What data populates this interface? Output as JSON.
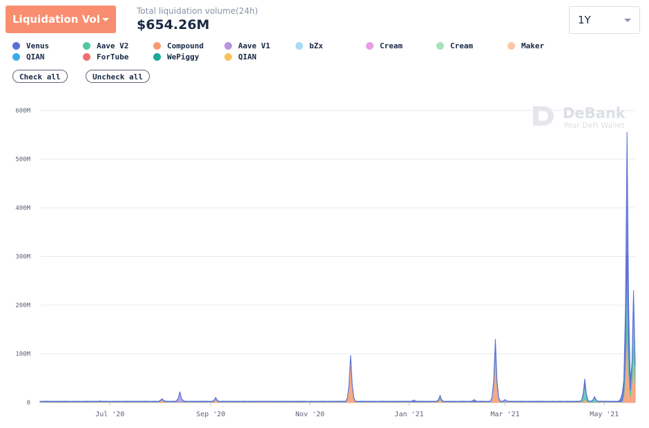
{
  "header": {
    "metric_label": "Liquidation Vol",
    "total_label": "Total liquidation volume(24h)",
    "total_value": "$654.26M",
    "range_value": "1Y"
  },
  "legend": [
    {
      "name": "Venus",
      "color": "#5b6fd8"
    },
    {
      "name": "Aave V2",
      "color": "#4ec9a2"
    },
    {
      "name": "Compound",
      "color": "#f59a72"
    },
    {
      "name": "Aave V1",
      "color": "#b794de"
    },
    {
      "name": "bZx",
      "color": "#a8dcf5"
    },
    {
      "name": "Cream",
      "color": "#e79ee3"
    },
    {
      "name": "Cream",
      "color": "#a7e3b8"
    },
    {
      "name": "Maker",
      "color": "#f9c7a6"
    },
    {
      "name": "QIAN",
      "color": "#3eabe6"
    },
    {
      "name": "ForTube",
      "color": "#f0706e"
    },
    {
      "name": "WePiggy",
      "color": "#1aa898"
    },
    {
      "name": "QIAN",
      "color": "#f8c45c"
    }
  ],
  "buttons": {
    "check_all": "Check all",
    "uncheck_all": "Uncheck all"
  },
  "watermark": {
    "title": "DeBank",
    "subtitle": "Your DeFi Wallet"
  },
  "chart_data": {
    "type": "area",
    "stacked": true,
    "x_axis": {
      "type": "date",
      "min": "2020-05-19",
      "max": "2021-05-20",
      "ticks": [
        {
          "date": "2020-07-01",
          "label": "Jul '20"
        },
        {
          "date": "2020-09-01",
          "label": "Sep '20"
        },
        {
          "date": "2020-11-01",
          "label": "Nov '20"
        },
        {
          "date": "2021-01-01",
          "label": "Jan '21"
        },
        {
          "date": "2021-03-01",
          "label": "Mar '21"
        },
        {
          "date": "2021-05-01",
          "label": "May '21"
        }
      ]
    },
    "y_axis": {
      "min": 0,
      "max": 600,
      "ticks": [
        {
          "value": 0,
          "label": "0"
        },
        {
          "value": 100,
          "label": "100M"
        },
        {
          "value": 200,
          "label": "200M"
        },
        {
          "value": 300,
          "label": "300M"
        },
        {
          "value": 400,
          "label": "400M"
        },
        {
          "value": 500,
          "label": "500M"
        },
        {
          "value": 600,
          "label": "600M"
        }
      ]
    },
    "grid": true,
    "series": [
      {
        "name": "Compound",
        "color": "#f59a72",
        "points": [
          {
            "date": "2020-06-25",
            "value": 1
          },
          {
            "date": "2020-08-02",
            "value": 6
          },
          {
            "date": "2020-09-04",
            "value": 7
          },
          {
            "date": "2020-11-26",
            "value": 95
          },
          {
            "date": "2021-01-20",
            "value": 8
          },
          {
            "date": "2021-02-23",
            "value": 100
          },
          {
            "date": "2021-04-19",
            "value": 8
          },
          {
            "date": "2021-05-15",
            "value": 165
          },
          {
            "date": "2021-05-19",
            "value": 110
          }
        ]
      },
      {
        "name": "Aave V2",
        "color": "#4ec9a2",
        "points": [
          {
            "date": "2021-01-20",
            "value": 5
          },
          {
            "date": "2021-02-23",
            "value": 20
          },
          {
            "date": "2021-04-19",
            "value": 30
          },
          {
            "date": "2021-04-25",
            "value": 10
          },
          {
            "date": "2021-05-14",
            "value": 25
          },
          {
            "date": "2021-05-15",
            "value": 140
          },
          {
            "date": "2021-05-19",
            "value": 100
          }
        ]
      },
      {
        "name": "Aave V1",
        "color": "#b794de",
        "points": [
          {
            "date": "2020-08-13",
            "value": 20
          },
          {
            "date": "2020-09-04",
            "value": 2
          },
          {
            "date": "2021-03-01",
            "value": 4
          }
        ]
      },
      {
        "name": "Venus",
        "color": "#5b6fd8",
        "points": [
          {
            "date": "2021-01-04",
            "value": 3
          },
          {
            "date": "2021-02-10",
            "value": 4
          },
          {
            "date": "2021-02-23",
            "value": 10
          },
          {
            "date": "2021-04-19",
            "value": 10
          },
          {
            "date": "2021-05-12",
            "value": 15
          },
          {
            "date": "2021-05-15",
            "value": 250
          },
          {
            "date": "2021-05-19",
            "value": 20
          }
        ]
      }
    ]
  }
}
